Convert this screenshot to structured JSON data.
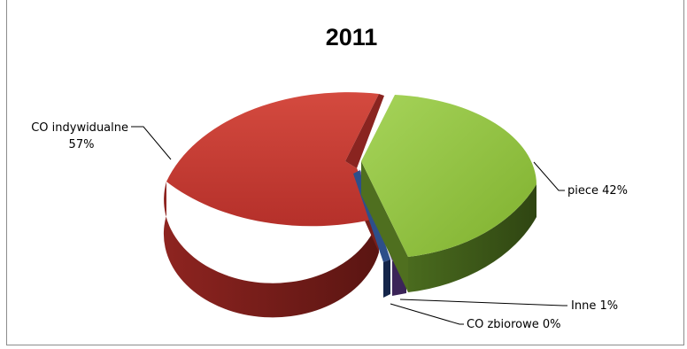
{
  "chart_data": {
    "type": "pie",
    "title": "2011",
    "slices": [
      {
        "name": "CO indywidualne",
        "value": 57,
        "label": "CO indywidualne",
        "pct_label": "57%",
        "color": "#c0392e",
        "dark": "#6e1d1a"
      },
      {
        "name": "piece",
        "value": 42,
        "label": "piece 42%",
        "color": "#8fc13a",
        "dark": "#3d5a17"
      },
      {
        "name": "Inne",
        "value": 1,
        "label": "Inne 1%",
        "color": "#7a55a8",
        "dark": "#3b2458"
      },
      {
        "name": "CO zbiorowe",
        "value": 0,
        "label": "CO zbiorowe 0%",
        "color": "#2e4f8a",
        "dark": "#15264a"
      }
    ]
  }
}
